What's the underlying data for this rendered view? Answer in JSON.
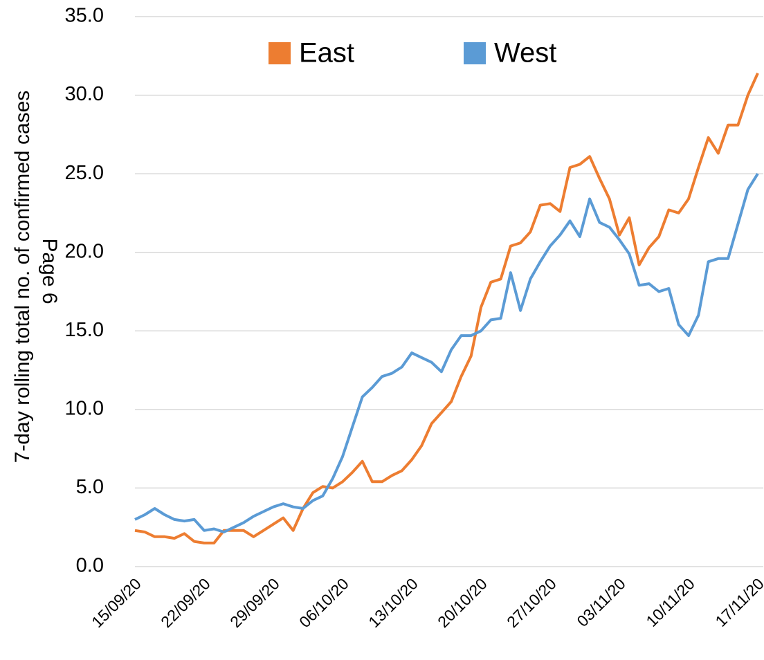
{
  "chart_data": {
    "type": "line",
    "y_label": "7-day rolling total no. of confirmed cases",
    "annotation": "Page 6",
    "categories": [
      "15/09/20",
      null,
      null,
      null,
      null,
      null,
      null,
      "22/09/20",
      null,
      null,
      null,
      null,
      null,
      null,
      "29/09/20",
      null,
      null,
      null,
      null,
      null,
      null,
      "06/10/20",
      null,
      null,
      null,
      null,
      null,
      null,
      "13/10/20",
      null,
      null,
      null,
      null,
      null,
      null,
      "20/10/20",
      null,
      null,
      null,
      null,
      null,
      null,
      "27/10/20",
      null,
      null,
      null,
      null,
      null,
      null,
      "03/11/20",
      null,
      null,
      null,
      null,
      null,
      null,
      "10/11/20",
      null,
      null,
      null,
      null,
      null,
      null,
      "17/11/20"
    ],
    "series": [
      {
        "name": "East",
        "color": "#ed7d31",
        "values": [
          2.3,
          2.2,
          1.9,
          1.9,
          1.8,
          2.1,
          1.6,
          1.5,
          1.5,
          2.3,
          2.3,
          2.3,
          1.9,
          2.3,
          2.7,
          3.1,
          2.3,
          3.7,
          4.7,
          5.1,
          5.0,
          5.4,
          6.0,
          6.7,
          5.4,
          5.4,
          5.8,
          6.1,
          6.8,
          7.7,
          9.1,
          9.8,
          10.5,
          12.1,
          13.4,
          16.5,
          18.1,
          18.3,
          20.4,
          20.6,
          21.3,
          23.0,
          23.1,
          22.6,
          25.4,
          25.6,
          26.1,
          24.7,
          23.4,
          21.1,
          22.2,
          19.2,
          20.3,
          21.0,
          22.7,
          22.5,
          23.4,
          25.4,
          27.3,
          26.3,
          28.1,
          28.1,
          30.0,
          31.4
        ]
      },
      {
        "name": "West",
        "color": "#5b9bd5",
        "values": [
          3.0,
          3.3,
          3.7,
          3.3,
          3.0,
          2.9,
          3.0,
          2.3,
          2.4,
          2.2,
          2.5,
          2.8,
          3.2,
          3.5,
          3.8,
          4.0,
          3.8,
          3.7,
          4.2,
          4.5,
          5.6,
          7.0,
          8.9,
          10.8,
          11.4,
          12.1,
          12.3,
          12.7,
          13.6,
          13.3,
          13.0,
          12.4,
          13.8,
          14.7,
          14.7,
          15.0,
          15.7,
          15.8,
          18.7,
          16.3,
          18.3,
          19.4,
          20.4,
          21.1,
          22.0,
          21.0,
          23.4,
          21.9,
          21.6,
          20.8,
          19.9,
          17.9,
          18.0,
          17.5,
          17.7,
          15.4,
          14.7,
          16.0,
          19.4,
          19.6,
          19.6,
          21.8,
          24.0,
          25.0
        ]
      }
    ],
    "ylim": [
      0,
      35
    ],
    "yticks": [
      {
        "value": 0,
        "label": "0.0"
      },
      {
        "value": 5,
        "label": "5.0"
      },
      {
        "value": 10,
        "label": "10.0"
      },
      {
        "value": 15,
        "label": "15.0"
      },
      {
        "value": 20,
        "label": "20.0"
      },
      {
        "value": 25,
        "label": "25.0"
      },
      {
        "value": 30,
        "label": "30.0"
      },
      {
        "value": 35,
        "label": "35.0"
      }
    ],
    "grid": true,
    "legend": "top"
  }
}
